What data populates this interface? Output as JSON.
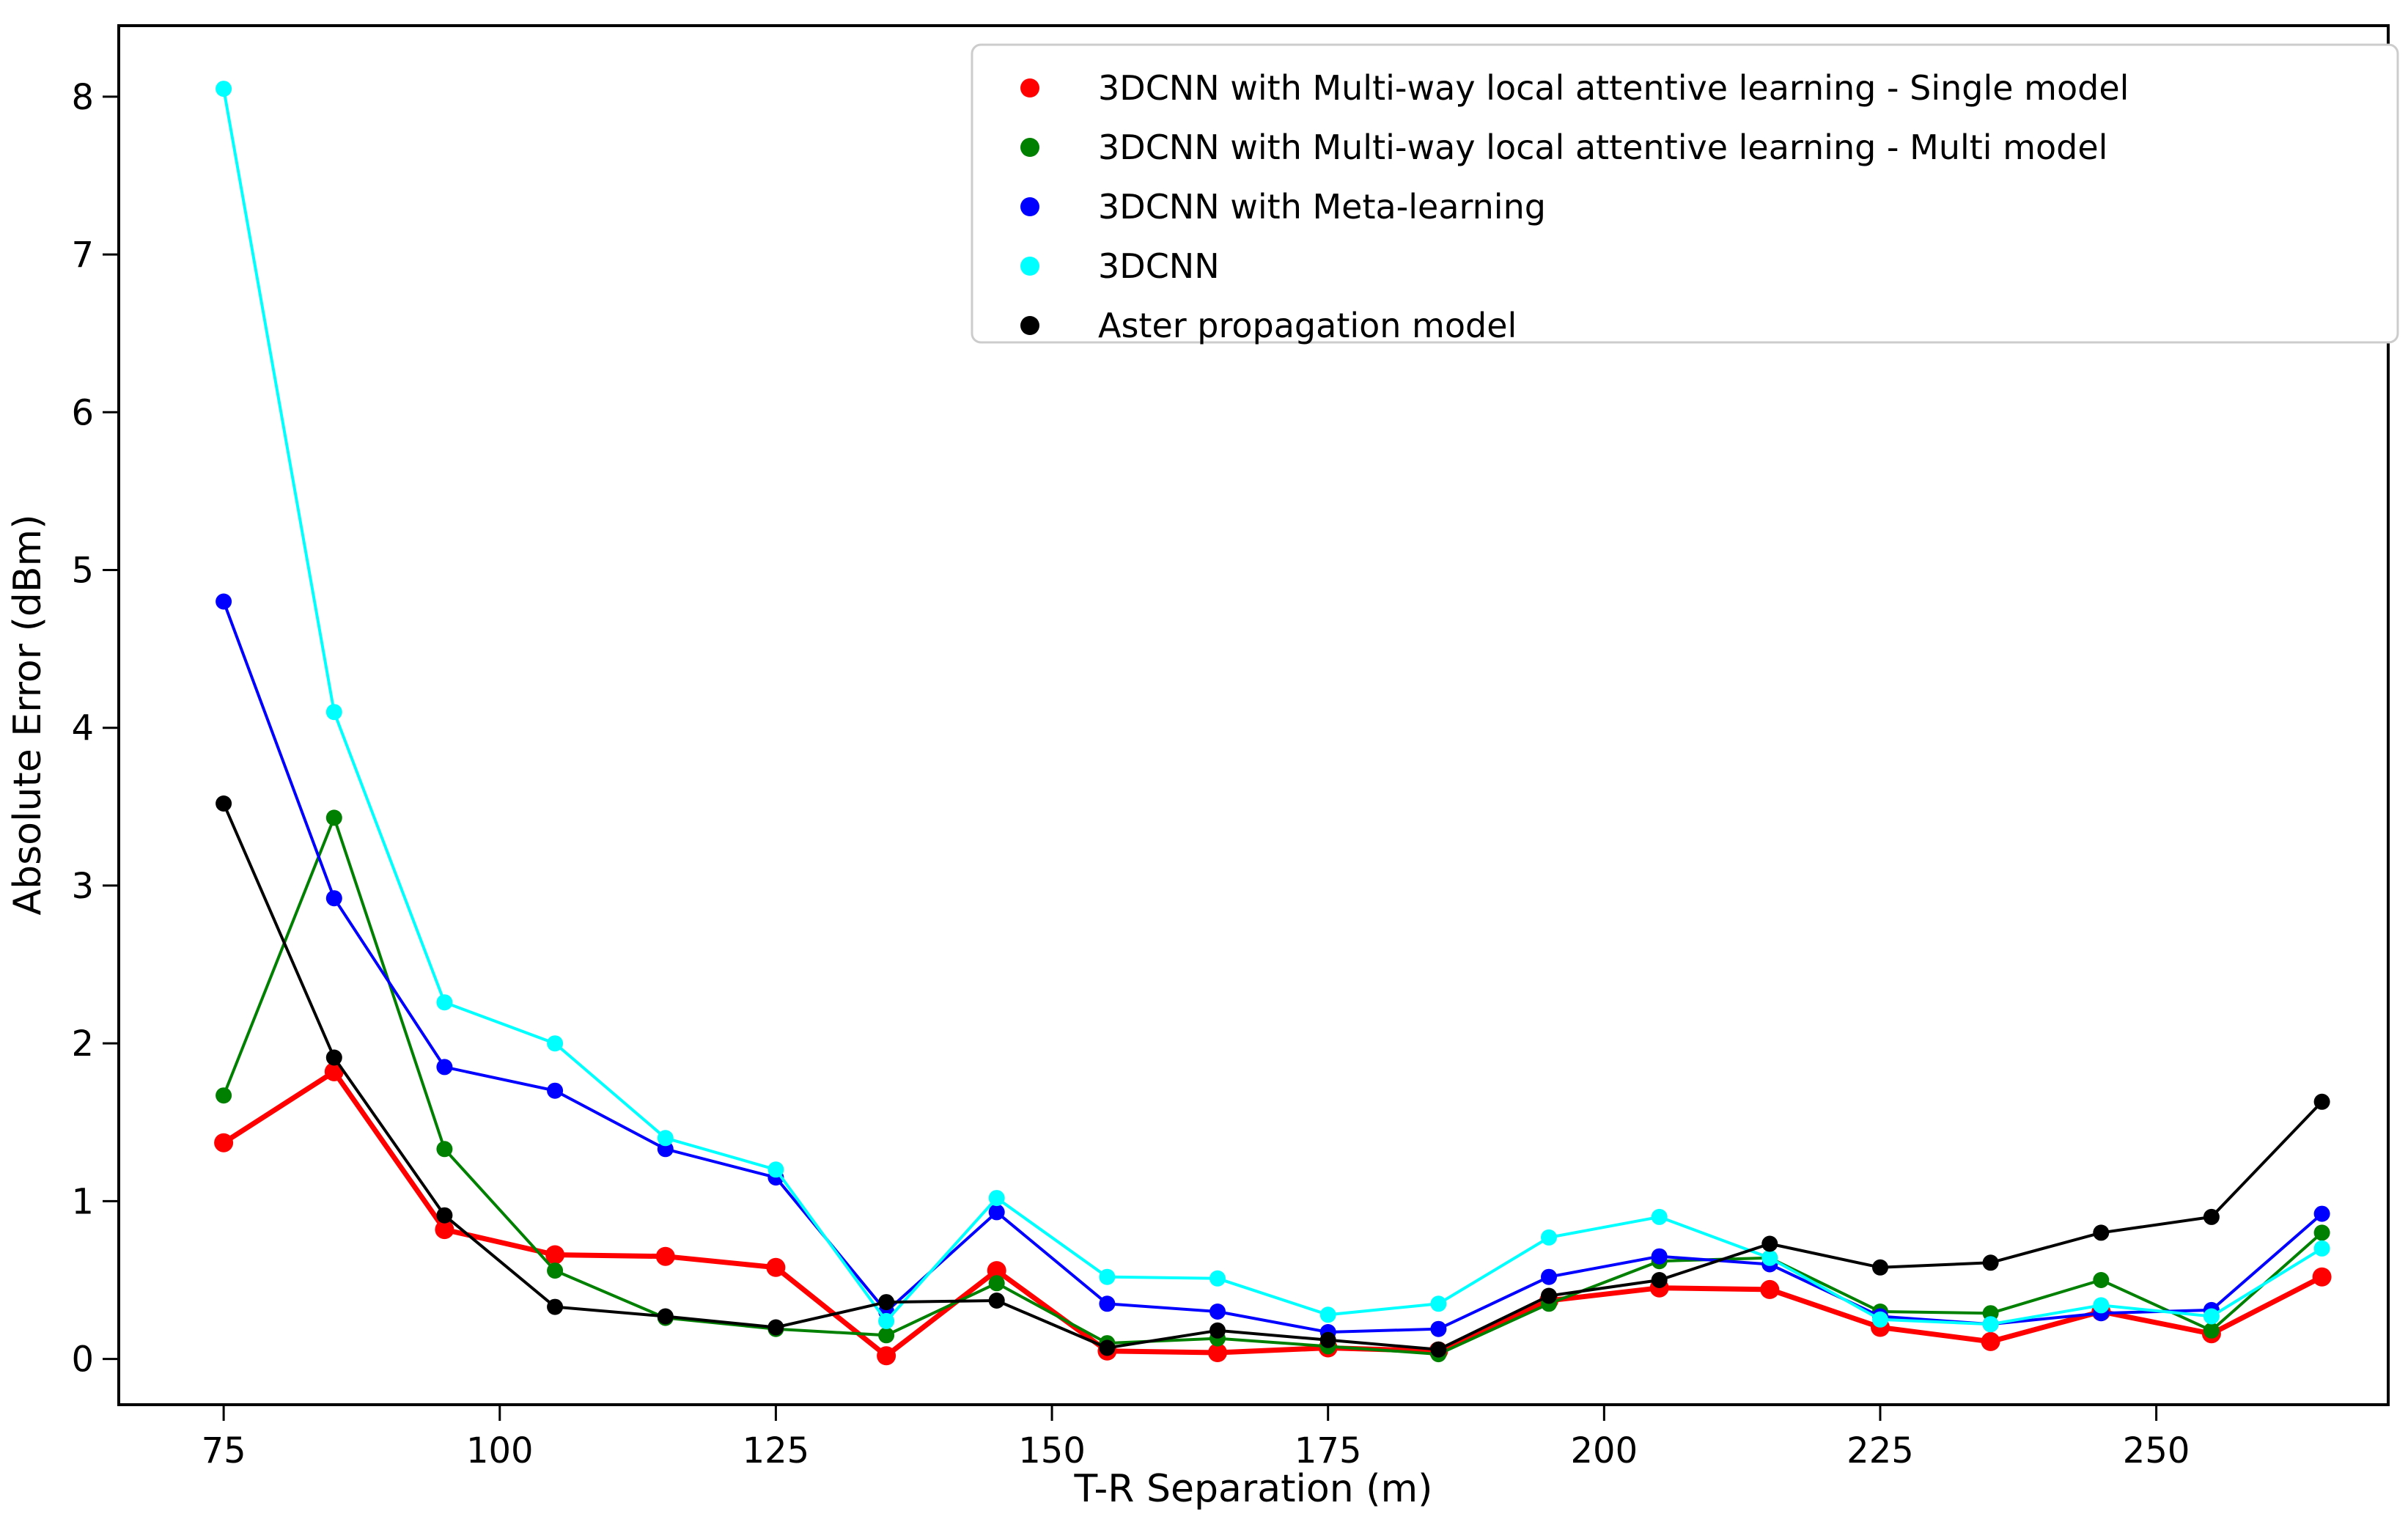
{
  "figure": {
    "background": "#ffffff"
  },
  "chart_data": {
    "type": "line",
    "title": "",
    "xlabel": "T-R Separation (m)",
    "ylabel": "Absolute Error (dBm)",
    "x": [
      75,
      85,
      95,
      105,
      115,
      125,
      135,
      145,
      155,
      165,
      175,
      185,
      195,
      205,
      215,
      225,
      235,
      245,
      255,
      265
    ],
    "series": [
      {
        "name": "3DCNN with Multi-way local attentive learning - Single model",
        "color": "#ff0000",
        "linewidth": 7,
        "markersize": 13,
        "values": [
          1.37,
          1.82,
          0.82,
          0.66,
          0.65,
          0.58,
          0.02,
          0.56,
          0.05,
          0.04,
          0.07,
          0.05,
          0.37,
          0.45,
          0.44,
          0.2,
          0.11,
          0.3,
          0.16,
          0.52
        ]
      },
      {
        "name": "3DCNN with Multi-way local attentive learning - Multi model",
        "color": "#008000",
        "linewidth": 4,
        "markersize": 11,
        "values": [
          1.67,
          3.43,
          1.33,
          0.56,
          0.26,
          0.19,
          0.15,
          0.48,
          0.1,
          0.13,
          0.08,
          0.03,
          0.35,
          0.62,
          0.64,
          0.3,
          0.29,
          0.5,
          0.18,
          0.8
        ]
      },
      {
        "name": "3DCNN with Meta-learning",
        "color": "#0000ff",
        "linewidth": 4,
        "markersize": 11,
        "values": [
          4.8,
          2.92,
          1.85,
          1.7,
          1.33,
          1.15,
          0.3,
          0.93,
          0.35,
          0.3,
          0.17,
          0.19,
          0.52,
          0.65,
          0.6,
          0.27,
          0.22,
          0.29,
          0.31,
          0.92
        ]
      },
      {
        "name": "3DCNN",
        "color": "#00ffff",
        "linewidth": 4,
        "markersize": 11,
        "values": [
          8.05,
          4.1,
          2.26,
          2.0,
          1.4,
          1.2,
          0.24,
          1.02,
          0.52,
          0.51,
          0.28,
          0.35,
          0.77,
          0.9,
          0.64,
          0.25,
          0.22,
          0.34,
          0.27,
          0.7
        ]
      },
      {
        "name": "Aster propagation model",
        "color": "#000000",
        "linewidth": 4,
        "markersize": 11,
        "values": [
          3.52,
          1.91,
          0.91,
          0.33,
          0.27,
          0.2,
          0.36,
          0.37,
          0.07,
          0.18,
          0.12,
          0.06,
          0.4,
          0.5,
          0.73,
          0.58,
          0.61,
          0.8,
          0.9,
          1.63
        ]
      }
    ],
    "x_ticks": [
      75,
      100,
      125,
      150,
      175,
      200,
      225,
      250
    ],
    "y_ticks": [
      0,
      1,
      2,
      3,
      4,
      5,
      6,
      7,
      8
    ],
    "xlim": [
      65.5,
      271.0
    ],
    "ylim": [
      -0.29,
      8.45
    ],
    "grid": false,
    "legend_position": "upper right",
    "legend_marker": "circle",
    "legend_border_color": "#cccccc"
  }
}
